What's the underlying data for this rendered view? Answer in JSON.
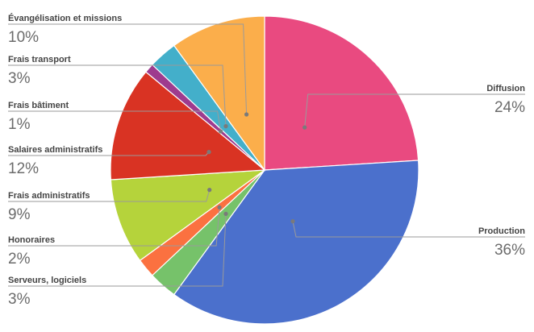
{
  "chart_data": {
    "type": "pie",
    "title": "",
    "start_angle_deg": 0,
    "direction": "clockwise",
    "slices": [
      {
        "name": "Diffusion",
        "pct_label": "24%",
        "value": 24,
        "color": "#E94A80"
      },
      {
        "name": "Production",
        "pct_label": "36%",
        "value": 36,
        "color": "#4B70CC"
      },
      {
        "name": "Serveurs, logiciels",
        "pct_label": "3%",
        "value": 3,
        "color": "#76C26A"
      },
      {
        "name": "Honoraires",
        "pct_label": "2%",
        "value": 2,
        "color": "#FB7140"
      },
      {
        "name": "Frais administratifs",
        "pct_label": "9%",
        "value": 9,
        "color": "#B5D33B"
      },
      {
        "name": "Salaires administratifs",
        "pct_label": "12%",
        "value": 12,
        "color": "#D93323"
      },
      {
        "name": "Frais bâtiment",
        "pct_label": "1%",
        "value": 1,
        "color": "#9E3B8E"
      },
      {
        "name": "Frais transport",
        "pct_label": "3%",
        "value": 3,
        "color": "#43AFCA"
      },
      {
        "name": "Évangélisation et missions",
        "pct_label": "10%",
        "value": 10,
        "color": "#FBAE4B"
      }
    ]
  }
}
